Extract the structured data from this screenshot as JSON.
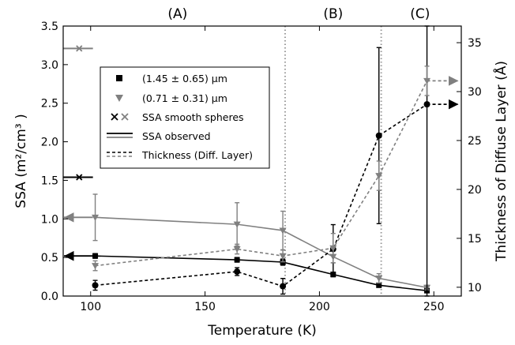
{
  "chart_data": {
    "type": "line",
    "xlabel": "Temperature (K)",
    "ylabel_left": "SSA (m²/cm³ )",
    "ylabel_right": "Thickness of Diffuse Layer (Å)",
    "xlim": [
      88,
      262
    ],
    "ylim_left": [
      0,
      3.5
    ],
    "ylim_right": [
      9.1,
      36.7
    ],
    "x_ticks": [
      100,
      150,
      200,
      250
    ],
    "y_left_ticks": [
      "0.0",
      "0.5",
      "1.0",
      "1.5",
      "2.0",
      "2.5",
      "3.0",
      "3.5"
    ],
    "y_right_ticks": [
      10,
      15,
      20,
      25,
      30,
      35
    ],
    "regions": {
      "labels": [
        {
          "text": "(A)",
          "x": 138
        },
        {
          "text": "(B)",
          "x": 206
        },
        {
          "text": "(C)",
          "x": 244
        }
      ],
      "boundaries": [
        185,
        227
      ]
    },
    "colors": {
      "black": "#000000",
      "gray": "#808080"
    },
    "legend": {
      "position": "upper-left",
      "entries": [
        {
          "label": "(1.45  ± 0.65) μm",
          "kind": "square-marker",
          "color": "#000000"
        },
        {
          "label": "(0.71  ± 0.31) μm",
          "kind": "triangle-marker",
          "color": "#808080"
        },
        {
          "label": "SSA smooth spheres",
          "kind": "x-markers"
        },
        {
          "label": "SSA observed",
          "kind": "solid-lines"
        },
        {
          "label": "Thickness (Diff. Layer)",
          "kind": "dashed-lines"
        }
      ]
    },
    "series": [
      {
        "group": "large",
        "quantity": "ssa_observed",
        "axis": "left",
        "color": "#000000",
        "style": "solid",
        "marker": "square",
        "x": [
          102,
          164,
          184,
          206,
          226,
          247
        ],
        "y": [
          0.52,
          0.47,
          0.44,
          0.28,
          0.14,
          0.07
        ],
        "err": [
          0.03,
          0.03,
          0.04,
          0.03,
          0.02,
          0.02
        ]
      },
      {
        "group": "small",
        "quantity": "ssa_observed",
        "axis": "left",
        "color": "#808080",
        "style": "solid",
        "marker": "triangle",
        "x": [
          102,
          164,
          184,
          206,
          226,
          247
        ],
        "y": [
          1.02,
          0.93,
          0.85,
          0.51,
          0.23,
          0.11
        ],
        "err": [
          0.3,
          0.28,
          0.25,
          0.08,
          0.06,
          0.03
        ]
      },
      {
        "group": "large",
        "quantity": "thickness",
        "axis": "right",
        "color": "#000000",
        "style": "dashed",
        "marker": "circle-square",
        "x": [
          102,
          164,
          184,
          206,
          226,
          247
        ],
        "y": [
          10.2,
          11.6,
          10.1,
          13.9,
          25.5,
          28.7
        ],
        "err": [
          0.5,
          0.4,
          0.8,
          2.5,
          9.0,
          20.5
        ]
      },
      {
        "group": "small",
        "quantity": "thickness",
        "axis": "right",
        "color": "#808080",
        "style": "dashed",
        "marker": "triangle",
        "x": [
          102,
          164,
          184,
          206,
          226,
          247
        ],
        "y": [
          12.2,
          13.9,
          13.2,
          14.0,
          21.4,
          31.1
        ],
        "err": [
          0.5,
          0.5,
          0.6,
          1.5,
          1.5,
          1.5
        ]
      }
    ],
    "smooth_spheres": [
      {
        "group": "small",
        "axis": "left",
        "value": 3.21,
        "x": 95,
        "color": "#808080"
      },
      {
        "group": "large",
        "axis": "left",
        "value": 1.54,
        "x": 95,
        "color": "#000000"
      }
    ],
    "left_arrows": [
      {
        "axis": "left",
        "value": 1.02,
        "color": "#808080"
      },
      {
        "axis": "left",
        "value": 0.52,
        "color": "#000000"
      }
    ],
    "right_arrows": [
      {
        "axis": "right",
        "value": 31.1,
        "from_x": 247,
        "color": "#808080"
      },
      {
        "axis": "right",
        "value": 28.7,
        "from_x": 247,
        "color": "#000000"
      }
    ]
  }
}
